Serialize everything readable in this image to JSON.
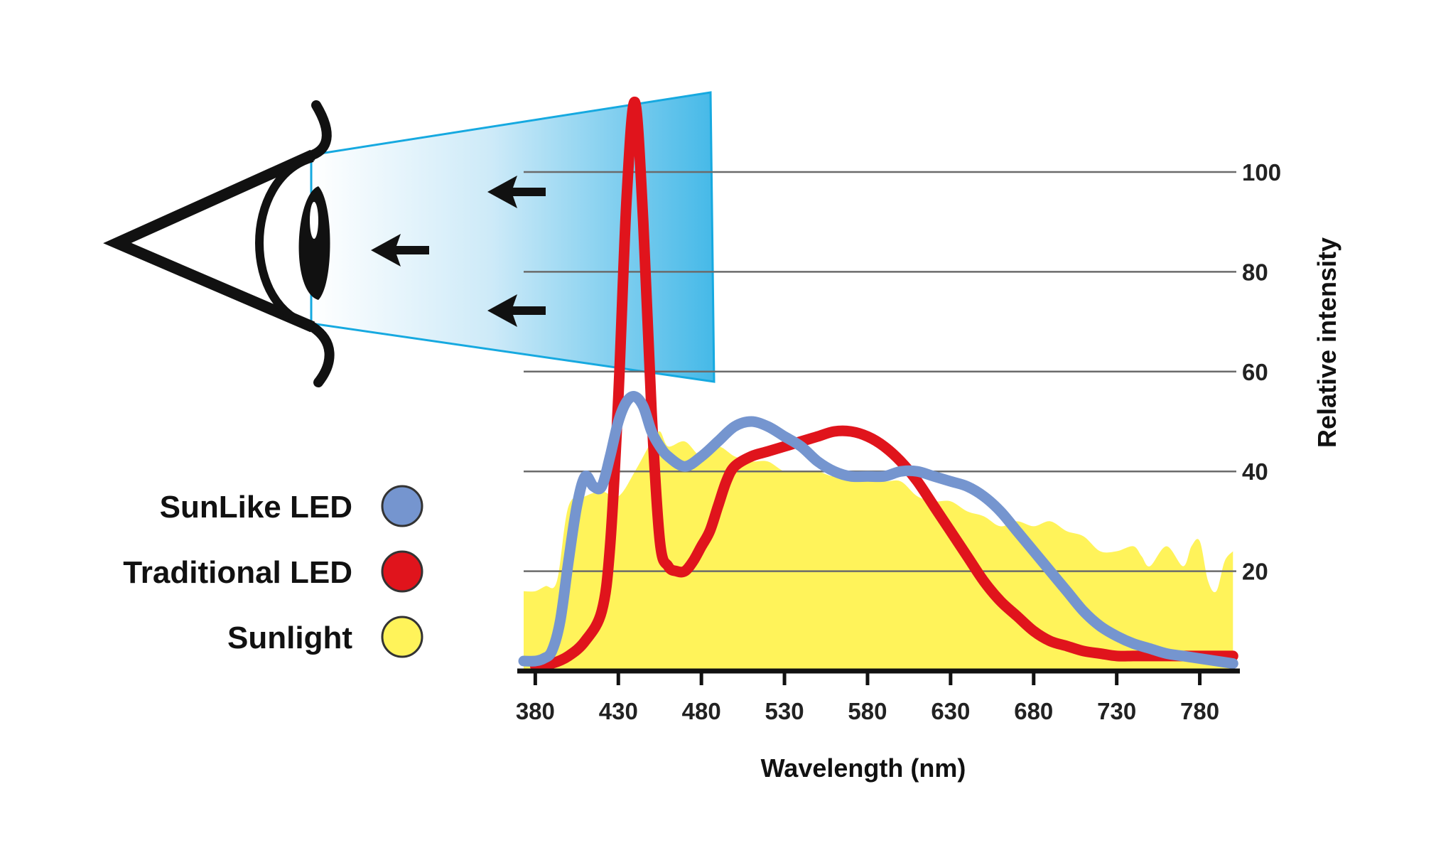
{
  "chart_data": {
    "type": "area",
    "xlabel": "Wavelength (nm)",
    "ylabel": "Relative intensity",
    "xlim": [
      373,
      802
    ],
    "ylim": [
      0,
      100
    ],
    "xticks": [
      380,
      430,
      480,
      530,
      580,
      630,
      680,
      730,
      780
    ],
    "yticks": [
      20,
      40,
      60,
      80,
      100
    ],
    "grid": "horizontal",
    "legend_position": "left",
    "series": [
      {
        "name": "Sunlight",
        "kind": "area",
        "color": "#fff35a",
        "x": [
          373,
          380,
          386,
          393,
          400,
          410,
          420,
          430,
          440,
          450,
          455,
          460,
          470,
          480,
          490,
          500,
          510,
          520,
          530,
          540,
          550,
          560,
          570,
          580,
          590,
          600,
          610,
          620,
          630,
          640,
          650,
          660,
          670,
          680,
          690,
          700,
          710,
          720,
          730,
          740,
          745,
          750,
          760,
          770,
          775,
          780,
          785,
          790,
          795,
          800
        ],
        "values": [
          16,
          16,
          17,
          18,
          33,
          35,
          36,
          35,
          40,
          46,
          48,
          45,
          46,
          43,
          45,
          43,
          42,
          42,
          40,
          40,
          40,
          39,
          40,
          39,
          38,
          38,
          35,
          34,
          34,
          32,
          31,
          29,
          30,
          29,
          30,
          28,
          27,
          24,
          24,
          25,
          23,
          21,
          25,
          21,
          25,
          26,
          18,
          16,
          22,
          24
        ]
      },
      {
        "name": "Traditional LED",
        "kind": "line",
        "color": "#e0141c",
        "x": [
          380,
          390,
          400,
          410,
          420,
          425,
          430,
          435,
          440,
          445,
          450,
          455,
          460,
          465,
          470,
          475,
          480,
          485,
          490,
          495,
          500,
          510,
          520,
          530,
          540,
          550,
          560,
          570,
          580,
          590,
          600,
          610,
          620,
          630,
          640,
          650,
          660,
          670,
          680,
          690,
          700,
          710,
          720,
          730,
          740,
          750,
          760,
          770,
          780,
          790,
          800
        ],
        "values": [
          1,
          1.5,
          3,
          6,
          12,
          25,
          55,
          95,
          114,
          90,
          52,
          26,
          21,
          20,
          20,
          22,
          25,
          28,
          33,
          38,
          41,
          43,
          44,
          45,
          46,
          47,
          48,
          48,
          47,
          45,
          42,
          38,
          33,
          28,
          23,
          18,
          14,
          11,
          8,
          6,
          5,
          4,
          3.5,
          3,
          3,
          3,
          3,
          3,
          3,
          3,
          3
        ]
      },
      {
        "name": "SunLike LED",
        "kind": "line",
        "color": "#7595cf",
        "x": [
          373,
          380,
          385,
          390,
          395,
          400,
          405,
          410,
          415,
          420,
          425,
          430,
          435,
          440,
          445,
          450,
          455,
          460,
          470,
          480,
          490,
          500,
          510,
          520,
          530,
          540,
          550,
          560,
          570,
          580,
          590,
          600,
          610,
          620,
          630,
          640,
          650,
          660,
          670,
          680,
          690,
          700,
          710,
          720,
          730,
          740,
          750,
          760,
          770,
          780,
          790,
          800
        ],
        "values": [
          2,
          2,
          2.5,
          4,
          10,
          22,
          33,
          39,
          37,
          37,
          43,
          50,
          54,
          55,
          53,
          48,
          45,
          43,
          41,
          43,
          46,
          49,
          50,
          49,
          47,
          45,
          42,
          40,
          39,
          39,
          39,
          40,
          40,
          39,
          38,
          37,
          35,
          32,
          28,
          24,
          20,
          16,
          12,
          9,
          7,
          5.5,
          4.5,
          3.5,
          3,
          2.5,
          2,
          1.5
        ]
      }
    ],
    "legend": [
      "SunLike LED",
      "Traditional LED",
      "Sunlight"
    ]
  },
  "legend": {
    "items": [
      {
        "label": "SunLike LED",
        "color": "#7595cf"
      },
      {
        "label": "Traditional LED",
        "color": "#e0141c"
      },
      {
        "label": "Sunlight",
        "color": "#fff35a"
      }
    ]
  },
  "illustration": {
    "icon": "eye-icon",
    "beam_color": "#29b3e6",
    "arrow_icon": "left-arrow-icon"
  }
}
